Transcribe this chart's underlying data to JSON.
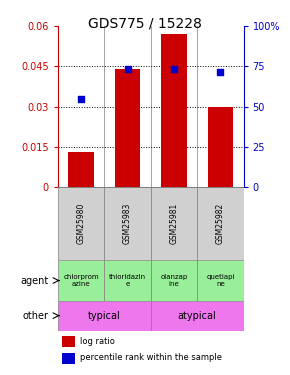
{
  "title": "GDS775 / 15228",
  "categories": [
    "GSM25980",
    "GSM25983",
    "GSM25981",
    "GSM25982"
  ],
  "bar_values": [
    0.013,
    0.044,
    0.057,
    0.03
  ],
  "blue_values": [
    0.033,
    0.044,
    0.044,
    0.043
  ],
  "ylim_left": [
    0,
    0.06
  ],
  "ylim_right": [
    0,
    100
  ],
  "yticks_left": [
    0,
    0.015,
    0.03,
    0.045,
    0.06
  ],
  "yticks_right": [
    0,
    25,
    50,
    75,
    100
  ],
  "ytick_labels_left": [
    "0",
    "0.015",
    "0.03",
    "0.045",
    "0.06"
  ],
  "ytick_labels_right": [
    "0",
    "25",
    "50",
    "75",
    "100%"
  ],
  "bar_color": "#cc0000",
  "blue_color": "#0000cc",
  "agent_labels": [
    "chlorprom\nazine",
    "thioridazin\ne",
    "olanzap\nine",
    "quetiapi\nne"
  ],
  "agent_bg": "#99ee99",
  "other_color": "#ee77ee",
  "label_gray": "#d0d0d0",
  "title_fontsize": 10,
  "tick_fontsize": 7,
  "bar_width": 0.55
}
